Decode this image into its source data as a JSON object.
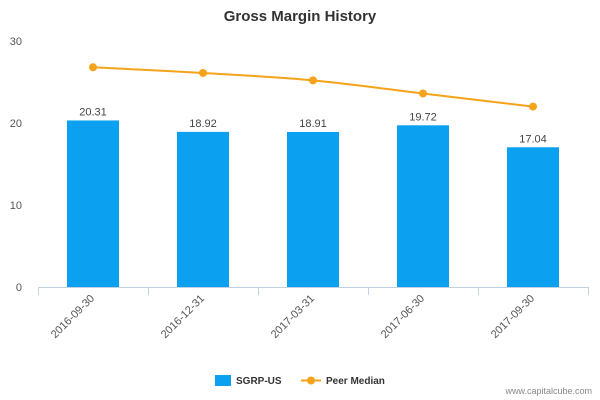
{
  "chart_data": {
    "type": "bar",
    "title": "Gross Margin History",
    "categories": [
      "2016-09-30",
      "2016-12-31",
      "2017-03-31",
      "2017-06-30",
      "2017-09-30"
    ],
    "series": [
      {
        "name": "SGRP-US",
        "type": "bar",
        "color": "#0ba0f0",
        "values": [
          20.31,
          18.92,
          18.91,
          19.72,
          17.04
        ],
        "labels": [
          "20.31",
          "18.92",
          "18.91",
          "19.72",
          "17.04"
        ]
      },
      {
        "name": "Peer Median",
        "type": "line",
        "color": "#f5a31a",
        "values": [
          26.8,
          26.1,
          25.2,
          23.6,
          22.0
        ]
      }
    ],
    "ylim": [
      0,
      30
    ],
    "yticks": [
      0,
      10,
      20,
      30
    ],
    "ytick_labels": [
      "0",
      "10",
      "20",
      "30"
    ],
    "grid": false,
    "legend_position": "bottom-center",
    "credit": "www.capitalcube.com"
  }
}
